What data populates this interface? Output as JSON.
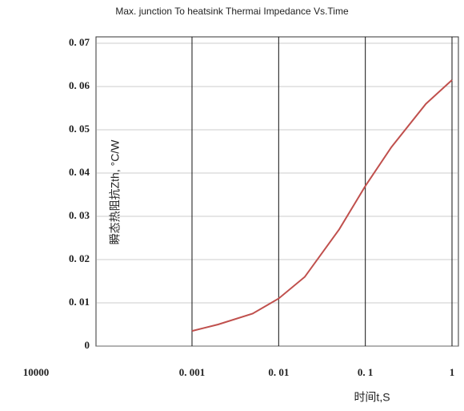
{
  "chart_data": {
    "type": "line",
    "title": "Max. junction To heatsink Thermai Impedance Vs.Time",
    "x_label": "时间t,S",
    "y_label": "瞬态热阻抗Zth, °C/W",
    "stray_label": "10000",
    "x_scale": "log",
    "grid": true,
    "x": [
      0.001,
      0.002,
      0.005,
      0.01,
      0.02,
      0.05,
      0.1,
      0.2,
      0.5,
      1
    ],
    "series": [
      {
        "color": "#c0504d",
        "values": [
          0.0035,
          0.005,
          0.0075,
          0.011,
          0.016,
          0.027,
          0.037,
          0.046,
          0.056,
          0.0615
        ]
      }
    ],
    "xlim": [
      0.001,
      1
    ],
    "xticks": [
      {
        "value": 0.001,
        "label": "0. 001"
      },
      {
        "value": 0.01,
        "label": "0. 01"
      },
      {
        "value": 0.1,
        "label": "0. 1"
      },
      1
    ],
    "ylim": [
      0,
      0.07
    ],
    "yticks": [
      0,
      {
        "value": 0.01,
        "label": "0. 01"
      },
      {
        "value": 0.02,
        "label": "0. 02"
      },
      {
        "value": 0.03,
        "label": "0. 03"
      },
      {
        "value": 0.04,
        "label": "0. 04"
      },
      {
        "value": 0.05,
        "label": "0. 05"
      },
      {
        "value": 0.06,
        "label": "0. 06"
      },
      {
        "value": 0.07,
        "label": "0. 07"
      }
    ]
  }
}
